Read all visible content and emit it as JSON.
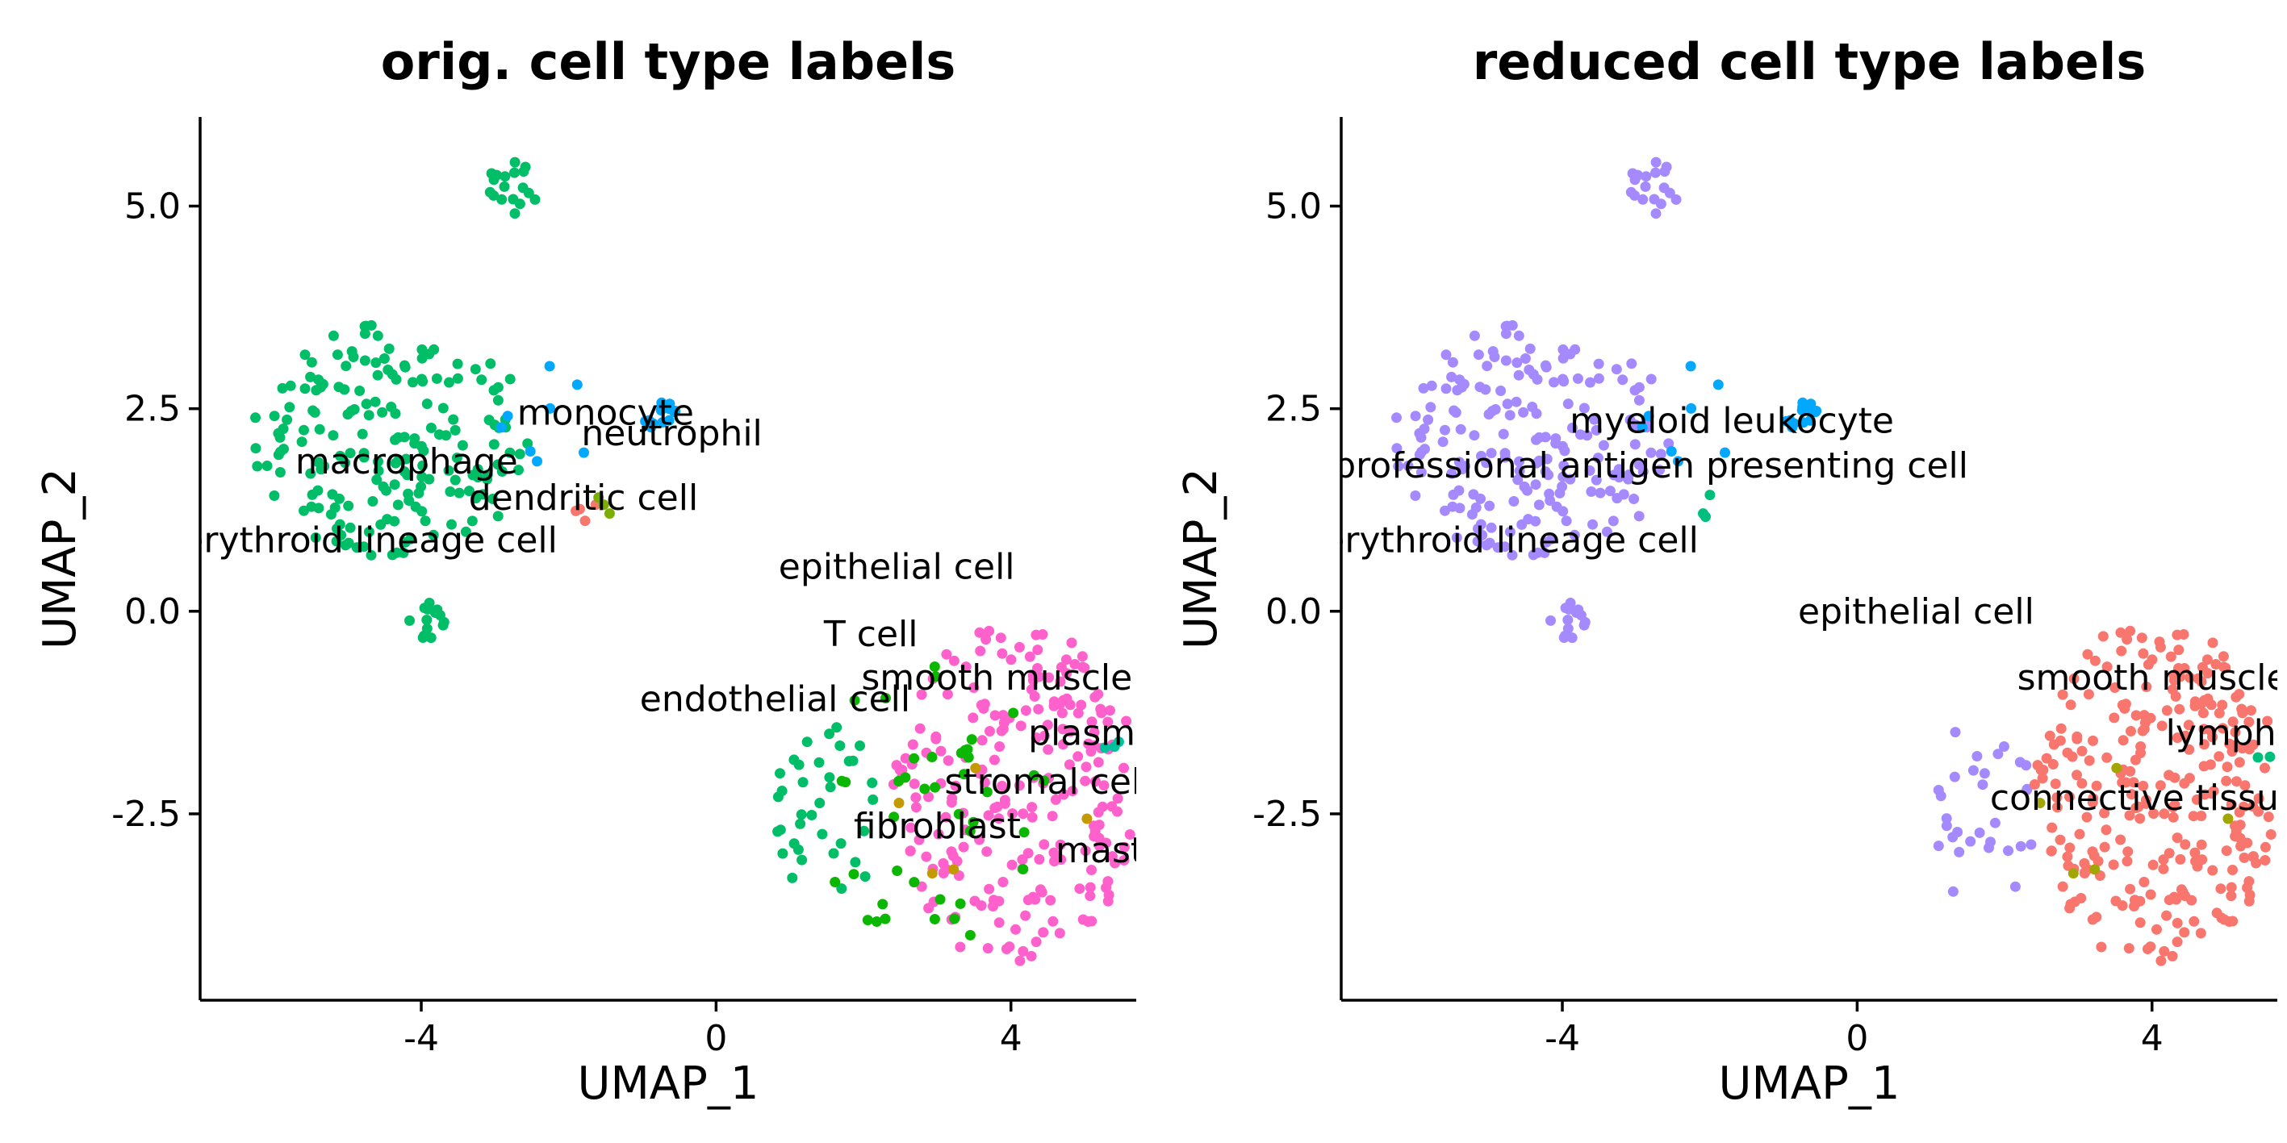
{
  "chart_data": [
    {
      "type": "scatter",
      "title": "orig. cell type labels",
      "xlabel": "UMAP_1",
      "ylabel": "UMAP_2",
      "xlim": [
        -7,
        5.7
      ],
      "ylim": [
        -4.8,
        6.1
      ],
      "x_ticks": [
        -4,
        0,
        4
      ],
      "x_tick_labels": [
        "-4",
        "0",
        "4"
      ],
      "y_ticks": [
        -2.5,
        0,
        2.5,
        5
      ],
      "y_tick_labels": [
        "-2.5",
        "0.0",
        "2.5",
        "5.0"
      ],
      "grid": false,
      "legend": "none",
      "clusters": [
        {
          "color": "#00BE67",
          "kind": "blob",
          "cx": -4.4,
          "cy": 2.1,
          "rx": 1.9,
          "ry": 1.45,
          "n": 190,
          "seed": 11
        },
        {
          "color": "#00BE67",
          "kind": "blob",
          "cx": -2.75,
          "cy": 5.2,
          "rx": 0.4,
          "ry": 0.35,
          "n": 18,
          "seed": 12
        },
        {
          "color": "#00BE67",
          "kind": "blob",
          "cx": -3.9,
          "cy": -0.1,
          "rx": 0.28,
          "ry": 0.3,
          "n": 14,
          "seed": 13
        },
        {
          "color": "#00BE67",
          "kind": "blob",
          "cx": 1.5,
          "cy": -2.4,
          "rx": 0.9,
          "ry": 1.2,
          "n": 36,
          "seed": 14
        },
        {
          "color": "#FF61CC",
          "kind": "blob",
          "cx": 4.05,
          "cy": -2.2,
          "rx": 1.65,
          "ry": 2.2,
          "n": 230,
          "seed": 15
        },
        {
          "color": "#00A9FF",
          "kind": "blob",
          "cx": -0.75,
          "cy": 2.42,
          "rx": 0.25,
          "ry": 0.18,
          "n": 14,
          "seed": 16
        },
        {
          "color": "#00A9FF",
          "kind": "blob",
          "cx": -2.3,
          "cy": 2.3,
          "rx": 1.0,
          "ry": 0.8,
          "n": 8,
          "seed": 17
        },
        {
          "color": "#0CB702",
          "kind": "blob",
          "cx": 2.9,
          "cy": -2.4,
          "rx": 1.6,
          "ry": 1.8,
          "n": 42,
          "seed": 18
        },
        {
          "color": "#F8766D",
          "kind": "blob",
          "cx": -1.85,
          "cy": 1.25,
          "rx": 0.25,
          "ry": 0.25,
          "n": 4,
          "seed": 19
        },
        {
          "color": "#C49A00",
          "kind": "blob",
          "cx": 3.5,
          "cy": -2.3,
          "rx": 1.6,
          "ry": 1.2,
          "n": 5,
          "seed": 20
        },
        {
          "color": "#00C19A",
          "kind": "blob",
          "cx": 5.4,
          "cy": -1.8,
          "rx": 0.3,
          "ry": 0.3,
          "n": 3,
          "seed": 21
        },
        {
          "color": "#7CAE00",
          "kind": "blob",
          "cx": -1.6,
          "cy": 1.3,
          "rx": 0.3,
          "ry": 0.2,
          "n": 3,
          "seed": 22
        }
      ],
      "labels": [
        {
          "text": "monocyte",
          "x": -1.5,
          "y": 2.45
        },
        {
          "text": "neutrophil",
          "x": -0.6,
          "y": 2.2
        },
        {
          "text": "macrophage",
          "x": -4.2,
          "y": 1.85
        },
        {
          "text": "dendritic cell",
          "x": -1.8,
          "y": 1.4
        },
        {
          "text": "erythroid lineage cell",
          "x": -4.7,
          "y": 0.88
        },
        {
          "text": "epithelial cell",
          "x": 2.45,
          "y": 0.55
        },
        {
          "text": "T cell",
          "x": 2.1,
          "y": -0.28
        },
        {
          "text": "endothelial cell",
          "x": 0.8,
          "y": -1.08
        },
        {
          "text": "smooth muscle cell",
          "x": 4.3,
          "y": -0.82
        },
        {
          "text": "plasma cell",
          "x": 5.6,
          "y": -1.5
        },
        {
          "text": "stromal cell",
          "x": 4.5,
          "y": -2.1
        },
        {
          "text": "fibroblast",
          "x": 3.0,
          "y": -2.65
        },
        {
          "text": "mast cell",
          "x": 5.7,
          "y": -2.95
        }
      ]
    },
    {
      "type": "scatter",
      "title": "reduced cell type labels",
      "xlabel": "UMAP_1",
      "ylabel": "UMAP_2",
      "xlim": [
        -7,
        5.7
      ],
      "ylim": [
        -4.8,
        6.1
      ],
      "x_ticks": [
        -4,
        0,
        4
      ],
      "x_tick_labels": [
        "-4",
        "0",
        "4"
      ],
      "y_ticks": [
        -2.5,
        0,
        2.5,
        5
      ],
      "y_tick_labels": [
        "-2.5",
        "0.0",
        "2.5",
        "5.0"
      ],
      "grid": false,
      "legend": "none",
      "clusters": [
        {
          "color": "#A58AFF",
          "kind": "blob",
          "cx": -4.4,
          "cy": 2.1,
          "rx": 1.9,
          "ry": 1.45,
          "n": 190,
          "seed": 11
        },
        {
          "color": "#A58AFF",
          "kind": "blob",
          "cx": -2.75,
          "cy": 5.2,
          "rx": 0.4,
          "ry": 0.35,
          "n": 18,
          "seed": 12
        },
        {
          "color": "#A58AFF",
          "kind": "blob",
          "cx": -3.9,
          "cy": -0.1,
          "rx": 0.28,
          "ry": 0.3,
          "n": 14,
          "seed": 13
        },
        {
          "color": "#A58AFF",
          "kind": "blob",
          "cx": 1.7,
          "cy": -2.5,
          "rx": 0.7,
          "ry": 1.2,
          "n": 30,
          "seed": 31
        },
        {
          "color": "#F8766D",
          "kind": "blob",
          "cx": 4.05,
          "cy": -2.2,
          "rx": 1.65,
          "ry": 2.2,
          "n": 270,
          "seed": 15
        },
        {
          "color": "#00A9FF",
          "kind": "blob",
          "cx": -0.75,
          "cy": 2.42,
          "rx": 0.25,
          "ry": 0.18,
          "n": 14,
          "seed": 16
        },
        {
          "color": "#00A9FF",
          "kind": "blob",
          "cx": -2.3,
          "cy": 2.3,
          "rx": 1.0,
          "ry": 0.8,
          "n": 8,
          "seed": 17
        },
        {
          "color": "#00BF7D",
          "kind": "blob",
          "cx": -2.0,
          "cy": 1.35,
          "rx": 0.5,
          "ry": 0.2,
          "n": 3,
          "seed": 32
        },
        {
          "color": "#A3A500",
          "kind": "blob",
          "cx": 3.5,
          "cy": -2.3,
          "rx": 1.6,
          "ry": 1.2,
          "n": 5,
          "seed": 20
        },
        {
          "color": "#00BF7D",
          "kind": "blob",
          "cx": 5.6,
          "cy": -1.9,
          "rx": 0.2,
          "ry": 0.2,
          "n": 2,
          "seed": 33
        }
      ],
      "labels": [
        {
          "text": "myeloid leukocyte",
          "x": -1.7,
          "y": 2.35
        },
        {
          "text": "professional antigen presenting cell",
          "x": -2.8,
          "y": 1.8
        },
        {
          "text": "erythroid lineage cell",
          "x": -4.7,
          "y": 0.88
        },
        {
          "text": "epithelial cell",
          "x": 0.8,
          "y": 0.0
        },
        {
          "text": "smooth muscle cell",
          "x": 4.5,
          "y": -0.82
        },
        {
          "text": "lymphocyte",
          "x": 5.6,
          "y": -1.5
        },
        {
          "text": "connective tissue cell",
          "x": 4.4,
          "y": -2.3
        }
      ]
    }
  ]
}
